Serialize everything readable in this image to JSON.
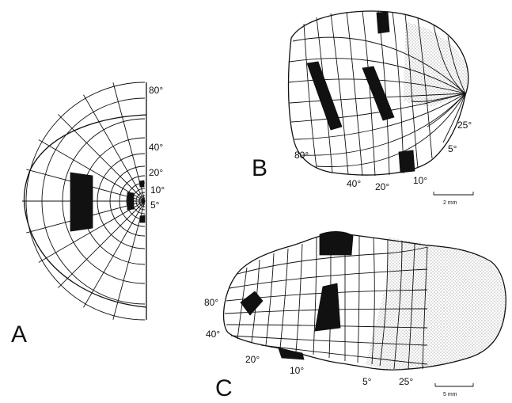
{
  "panels": [
    {
      "id": "A",
      "letter": "A",
      "labels": [
        "80°",
        "40°",
        "20°",
        "10°",
        "5°"
      ]
    },
    {
      "id": "B",
      "letter": "B",
      "labels": [
        "80°",
        "40°",
        "20°",
        "10°",
        "5°",
        "25°"
      ],
      "scale_bar": "2 mm"
    },
    {
      "id": "C",
      "letter": "C",
      "labels": [
        "80°",
        "40°",
        "20°",
        "10°",
        "5°",
        "25°"
      ],
      "scale_bar": "5 mm"
    }
  ],
  "colors": {
    "ink": "#111111",
    "paper": "#ffffff",
    "stipple": "#555555"
  }
}
